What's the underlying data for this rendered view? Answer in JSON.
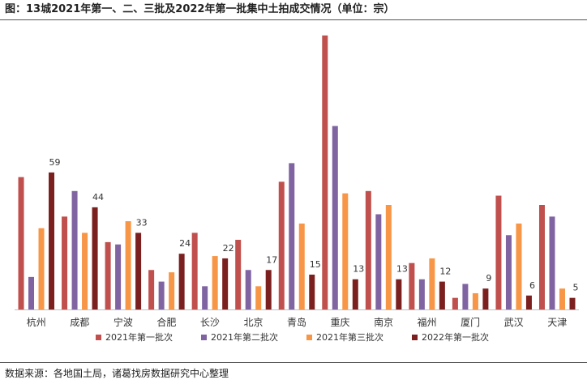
{
  "title": "图：13城2021年第一、二、三批及2022年第一批集中土拍成交情况（单位：宗）",
  "source": "数据来源：各地国土局，诸葛找房数据研究中心整理",
  "colors": {
    "s2021_1": "#c0504d",
    "s2021_2": "#8064a2",
    "s2021_3": "#f79646",
    "s2022_1": "#7b1f1f"
  },
  "chart_data": {
    "type": "bar",
    "title": "图：13城2021年第一、二、三批及2022年第一批集中土拍成交情况（单位：宗）",
    "categories": [
      "杭州",
      "成都",
      "宁波",
      "合肥",
      "长沙",
      "北京",
      "青岛",
      "重庆",
      "南京",
      "福州",
      "厦门",
      "武汉",
      "天津"
    ],
    "series": [
      {
        "name": "2021年第一批次",
        "color": "#c0504d",
        "values": [
          57,
          40,
          29,
          17,
          33,
          30,
          55,
          118,
          51,
          20,
          5,
          49,
          45
        ]
      },
      {
        "name": "2021年第二批次",
        "color": "#8064a2",
        "values": [
          14,
          51,
          28,
          12,
          10,
          17,
          63,
          79,
          41,
          13,
          11,
          32,
          40
        ]
      },
      {
        "name": "2021年第三批次",
        "color": "#f79646",
        "values": [
          35,
          33,
          38,
          16,
          23,
          10,
          37,
          50,
          45,
          22,
          7,
          37,
          9
        ]
      },
      {
        "name": "2022年第一批次",
        "color": "#7b1f1f",
        "values": [
          59,
          44,
          33,
          24,
          22,
          17,
          15,
          13,
          13,
          12,
          9,
          6,
          5
        ],
        "data_labels": true
      }
    ],
    "ylim": [
      0,
      120
    ],
    "grid": false,
    "legend": "bottom",
    "xlabel": "",
    "ylabel": ""
  }
}
